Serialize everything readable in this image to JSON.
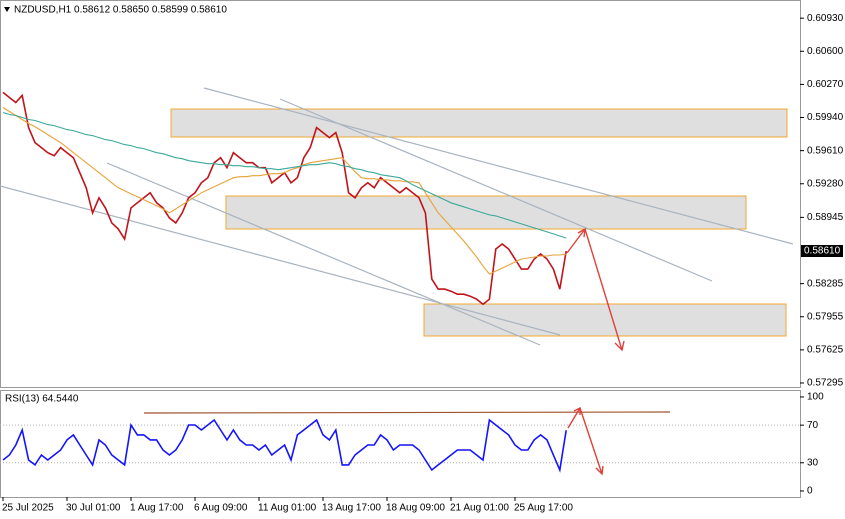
{
  "chart_data": [
    {
      "type": "line",
      "title": "NZDUSD,H1  0.58612 0.58650 0.58599 0.58610",
      "categories": [
        "25 Jul 2025",
        null,
        null,
        null,
        null,
        null,
        null,
        null,
        null,
        null,
        "30 Jul 01:00",
        null,
        null,
        null,
        null,
        null,
        null,
        null,
        null,
        null,
        "1 Aug 17:00",
        null,
        null,
        null,
        null,
        null,
        null,
        null,
        null,
        null,
        "6 Aug 09:00",
        null,
        null,
        null,
        null,
        null,
        null,
        null,
        null,
        null,
        "11 Aug 01:00",
        null,
        null,
        null,
        null,
        null,
        null,
        null,
        null,
        null,
        "13 Aug 17:00",
        null,
        null,
        null,
        null,
        null,
        null,
        null,
        null,
        null,
        "18 Aug 09:00",
        null,
        null,
        null,
        null,
        null,
        null,
        null,
        null,
        null,
        "21 Aug 01:00",
        null,
        null,
        null,
        null,
        null,
        null,
        null,
        null,
        null,
        "25 Aug 17:00",
        null,
        null,
        null,
        null,
        null,
        null,
        null,
        null
      ],
      "series": [
        {
          "color": "#c0141b",
          "values": [
            0.6019,
            0.6014,
            0.6009,
            0.6016,
            0.5984,
            0.5969,
            0.5964,
            0.5959,
            0.5956,
            0.5964,
            0.5959,
            0.5954,
            0.5939,
            0.5924,
            0.5899,
            0.5914,
            0.5904,
            0.5889,
            0.5883,
            0.5873,
            0.5904,
            0.5909,
            0.5914,
            0.5919,
            0.5909,
            0.5904,
            0.5894,
            0.5889,
            0.5899,
            0.5914,
            0.5919,
            0.5929,
            0.5934,
            0.5949,
            0.5954,
            0.5944,
            0.5959,
            0.5954,
            0.5949,
            0.5949,
            0.5944,
            0.5944,
            0.5929,
            0.5934,
            0.5939,
            0.5929,
            0.5934,
            0.5954,
            0.5964,
            0.5984,
            0.5979,
            0.5974,
            0.5979,
            0.5959,
            0.5919,
            0.5914,
            0.5924,
            0.5929,
            0.5924,
            0.5934,
            0.5929,
            0.5924,
            0.5919,
            0.5924,
            0.5919,
            0.5914,
            0.5899,
            0.5833,
            0.5823,
            0.5823,
            0.5821,
            0.5818,
            0.5818,
            0.5816,
            0.5813,
            0.5808,
            0.5813,
            0.5863,
            0.5868,
            0.5863,
            0.5853,
            0.5843,
            0.5843,
            0.5853,
            0.5858,
            0.5853,
            0.5843,
            0.5823,
            0.5861
          ]
        },
        {
          "color": "#e8a33a",
          "values": [
            0.6004,
            0.6,
            0.5996,
            0.5992,
            0.5988,
            0.5985,
            0.5981,
            0.5977,
            0.5973,
            0.5969,
            0.5964,
            0.5959,
            0.5954,
            0.5949,
            0.5944,
            0.5939,
            0.5934,
            0.5929,
            0.5924,
            0.5921,
            0.5918,
            0.5915,
            0.5912,
            0.5909,
            0.5906,
            0.5903,
            0.5899,
            0.5903,
            0.5907,
            0.5911,
            0.5915,
            0.5919,
            0.5922,
            0.5925,
            0.5928,
            0.5931,
            0.5934,
            0.5935,
            0.5935,
            0.5936,
            0.5936,
            0.5937,
            0.5938,
            0.5938,
            0.5939,
            0.5942,
            0.5944,
            0.5947,
            0.5949,
            0.595,
            0.5951,
            0.5952,
            0.5953,
            0.5954,
            0.5947,
            0.594,
            0.5934,
            0.5933,
            0.5933,
            0.5932,
            0.5932,
            0.5931,
            0.5931,
            0.593,
            0.593,
            0.5929,
            0.5919,
            0.5909,
            0.5899,
            0.5892,
            0.5885,
            0.5878,
            0.5871,
            0.5863,
            0.5855,
            0.5846,
            0.5838,
            0.5841,
            0.5844,
            0.5847,
            0.585,
            0.5853,
            0.5854,
            0.5855,
            0.5856,
            0.5856,
            0.5857,
            0.5857,
            0.5858
          ]
        },
        {
          "color": "#3aa99a",
          "values": [
            0.5999,
            0.5997,
            0.5996,
            0.5994,
            0.5992,
            0.5991,
            0.5989,
            0.5987,
            0.5986,
            0.5984,
            0.5982,
            0.5981,
            0.5979,
            0.5977,
            0.5976,
            0.5974,
            0.5972,
            0.5971,
            0.5969,
            0.5967,
            0.5966,
            0.5964,
            0.5963,
            0.5961,
            0.5959,
            0.5958,
            0.5956,
            0.5954,
            0.5953,
            0.5951,
            0.595,
            0.5949,
            0.5948,
            0.5948,
            0.5947,
            0.5947,
            0.5946,
            0.5946,
            0.5945,
            0.5945,
            0.5944,
            0.5943,
            0.5943,
            0.5942,
            0.5943,
            0.5944,
            0.5945,
            0.5946,
            0.5947,
            0.5947,
            0.5948,
            0.5949,
            0.5948,
            0.5946,
            0.5945,
            0.5943,
            0.5942,
            0.594,
            0.5939,
            0.5937,
            0.5936,
            0.5935,
            0.5934,
            0.5931,
            0.5927,
            0.5924,
            0.5921,
            0.5918,
            0.5915,
            0.5912,
            0.5909,
            0.5907,
            0.5905,
            0.5903,
            0.5901,
            0.5899,
            0.5897,
            0.5896,
            0.5894,
            0.5892,
            0.589,
            0.5888,
            0.5886,
            0.5884,
            0.5882,
            0.588,
            0.5878,
            0.5876,
            0.5874
          ]
        }
      ],
      "current_price": {
        "value": 0.5861,
        "label": "0.58610"
      },
      "ylim": [
        0.57255,
        0.61111
      ],
      "yticks": [
        {
          "value": 0.6093,
          "label": "0.60930"
        },
        {
          "value": 0.606,
          "label": "0.60600"
        },
        {
          "value": 0.6027,
          "label": "0.60270"
        },
        {
          "value": 0.5994,
          "label": "0.59940"
        },
        {
          "value": 0.5961,
          "label": "0.59610"
        },
        {
          "value": 0.5928,
          "label": "0.59280"
        },
        {
          "value": 0.58945,
          "label": "0.58945"
        },
        {
          "value": 0.58285,
          "label": "0.58285"
        },
        {
          "value": 0.57955,
          "label": "0.57955"
        },
        {
          "value": 0.57625,
          "label": "0.57625"
        },
        {
          "value": 0.57295,
          "label": "0.57295"
        }
      ]
    },
    {
      "type": "line",
      "title": "RSI(13) 64.5440",
      "series": [
        {
          "color": "#1414ff",
          "values": [
            33.0,
            38.3,
            48.9,
            64.9,
            33.0,
            27.7,
            38.3,
            33.0,
            38.3,
            43.6,
            54.3,
            59.6,
            48.9,
            38.3,
            27.7,
            54.3,
            48.9,
            38.3,
            33.0,
            27.7,
            70.2,
            59.6,
            59.6,
            54.3,
            54.3,
            43.6,
            38.3,
            43.6,
            54.3,
            70.2,
            70.2,
            64.9,
            70.2,
            75.5,
            64.9,
            54.3,
            64.9,
            54.3,
            48.9,
            48.9,
            43.6,
            48.9,
            38.3,
            43.6,
            48.9,
            33.0,
            59.6,
            64.9,
            70.2,
            75.5,
            59.6,
            54.3,
            64.9,
            27.7,
            27.7,
            38.3,
            43.6,
            48.9,
            48.9,
            59.6,
            54.3,
            43.6,
            48.9,
            48.9,
            48.9,
            43.6,
            33.0,
            22.3,
            27.7,
            33.0,
            38.3,
            43.6,
            43.6,
            43.6,
            38.3,
            33.0,
            75.5,
            70.2,
            64.9,
            59.6,
            48.9,
            43.6,
            43.6,
            54.3,
            59.6,
            54.3,
            38.3,
            22.3,
            64.5
          ]
        }
      ],
      "ylim": [
        -6.4,
        107.4
      ],
      "yticks": [
        100,
        70,
        30,
        0
      ],
      "levels": [
        70,
        30
      ]
    }
  ]
}
